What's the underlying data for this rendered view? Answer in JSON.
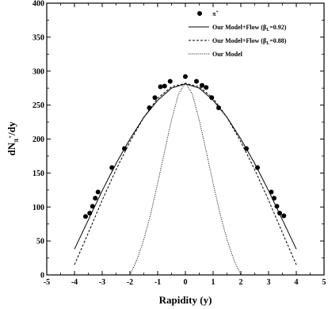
{
  "chart_data": {
    "type": "scatter",
    "title": "",
    "xlabel": "Rapidity (y)",
    "ylabel_main": "dN",
    "ylabel_sub": "π",
    "ylabel_sup": "+",
    "ylabel_tail": "/dy",
    "xlim": [
      -5,
      5
    ],
    "ylim": [
      0,
      400
    ],
    "xticks": [
      -5,
      -4,
      -3,
      -2,
      -1,
      0,
      1,
      2,
      3,
      4,
      5
    ],
    "yticks": [
      0,
      50,
      100,
      150,
      200,
      250,
      300,
      350,
      400
    ],
    "grid": false,
    "legend_position": "top-right",
    "series": [
      {
        "name": "π+",
        "legend_main": "π",
        "legend_sup": "+",
        "style": "markers",
        "color": "#000000",
        "x": [
          -3.6,
          -3.45,
          -3.35,
          -3.25,
          -3.15,
          -2.65,
          -2.2,
          -1.3,
          -1.1,
          -0.9,
          -0.75,
          -0.55,
          0.0,
          0.4,
          0.6,
          0.75,
          0.95,
          1.2,
          2.2,
          2.6,
          3.1,
          3.2,
          3.3,
          3.4,
          3.55
        ],
        "y": [
          86,
          91,
          101,
          113,
          122,
          158,
          186,
          246,
          261,
          277,
          278,
          285,
          292,
          285,
          279,
          276,
          261,
          246,
          186,
          158,
          122,
          113,
          101,
          91,
          87
        ]
      },
      {
        "name": "Our Model+Flow (βL=0.92)",
        "legend_pre": "Our Model+Flow (β",
        "legend_sub": "L",
        "legend_post": "=0.92)",
        "style": "solid",
        "color": "#000000",
        "x": [
          -4.0,
          -3.5,
          -3.0,
          -2.5,
          -2.0,
          -1.5,
          -1.0,
          -0.5,
          0.0,
          0.5,
          1.0,
          1.5,
          2.0,
          2.5,
          3.0,
          3.5,
          4.0
        ],
        "y": [
          38,
          81,
          124,
          164,
          200,
          232,
          257,
          275,
          281,
          275,
          257,
          232,
          200,
          164,
          124,
          81,
          38
        ]
      },
      {
        "name": "Our Model+Flow (βL=0.88)",
        "legend_pre": "Our Model+Flow (β",
        "legend_sub": "L",
        "legend_post": "=0.88)",
        "style": "dashed",
        "color": "#000000",
        "x": [
          -4.0,
          -3.5,
          -3.0,
          -2.5,
          -2.0,
          -1.5,
          -1.0,
          -0.5,
          0.0,
          0.5,
          1.0,
          1.5,
          2.0,
          2.5,
          3.0,
          3.5,
          4.0
        ],
        "y": [
          15,
          62,
          110,
          155,
          196,
          232,
          260,
          277,
          282,
          277,
          260,
          232,
          196,
          155,
          110,
          62,
          15
        ]
      },
      {
        "name": "Our Model",
        "legend_pre": "Our Model",
        "style": "dotted",
        "color": "#000000",
        "x": [
          -2.0,
          -1.75,
          -1.5,
          -1.25,
          -1.0,
          -0.75,
          -0.5,
          -0.25,
          0.0,
          0.25,
          0.5,
          0.75,
          1.0,
          1.25,
          1.5,
          1.75,
          2.0
        ],
        "y": [
          0,
          22,
          52,
          90,
          135,
          182,
          228,
          266,
          283,
          266,
          228,
          182,
          135,
          90,
          52,
          22,
          0
        ]
      }
    ]
  }
}
